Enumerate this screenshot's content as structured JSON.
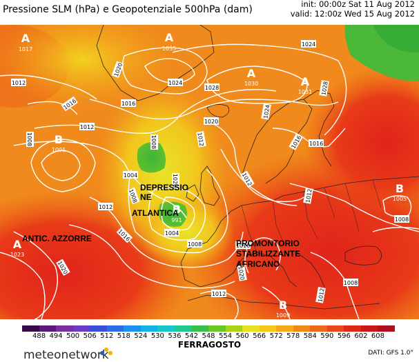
{
  "header": {
    "title": "Pressione SLM (hPa) e Geopotenziale 500hPa (dam)",
    "init": "init: 00:00z Sat 11 Aug 2012",
    "valid": "valid: 12:00z Wed 15 Aug 2012"
  },
  "map": {
    "labels": {
      "depressione_1": "DEPRESSIO",
      "depressione_2": "NE",
      "depressione_3": "ATLANTICA",
      "anticiclone": "ANTIC. AZZORRE",
      "promontorio_1": "PROMONTORIO",
      "promontorio_2": "STABILIZZANTE",
      "promontorio_3": "AFRICANO"
    },
    "centers": [
      {
        "letter": "A",
        "value": "1017"
      },
      {
        "letter": "A",
        "value": "1035"
      },
      {
        "letter": "A",
        "value": "1030"
      },
      {
        "letter": "A",
        "value": "1031"
      },
      {
        "letter": "B",
        "value": "1001"
      },
      {
        "letter": "B",
        "value": "991"
      },
      {
        "letter": "B",
        "value": "1005"
      },
      {
        "letter": "A",
        "value": "1023"
      },
      {
        "letter": "B",
        "value": "1009"
      }
    ],
    "isobars": [
      "1012",
      "1016",
      "1020",
      "1024",
      "1028",
      "1012",
      "1016",
      "1008",
      "1012",
      "1024",
      "1024",
      "1028",
      "1020",
      "1016",
      "1012",
      "1008",
      "1004",
      "1004",
      "1008",
      "1012",
      "1016",
      "1020",
      "1016",
      "1008",
      "1012",
      "1016",
      "1020",
      "1012",
      "1008",
      "1008",
      "1012",
      "1020",
      "1024",
      "1012",
      "1008",
      "1012",
      "1016"
    ]
  },
  "legend": {
    "ticks": [
      "488",
      "494",
      "500",
      "506",
      "512",
      "518",
      "524",
      "530",
      "536",
      "542",
      "548",
      "554",
      "560",
      "566",
      "572",
      "578",
      "584",
      "590",
      "596",
      "602",
      "608"
    ],
    "colors": [
      "#3b0a4a",
      "#5b1a7a",
      "#7a2fa2",
      "#6a3cc8",
      "#3a4fd8",
      "#2a6fe8",
      "#1e90f0",
      "#18b0e8",
      "#18c8c8",
      "#20c890",
      "#39c04a",
      "#68c828",
      "#a8d418",
      "#e8e020",
      "#f8c818",
      "#f8a818",
      "#f08818",
      "#ec6818",
      "#e84818",
      "#e02818",
      "#c81818",
      "#b01020"
    ],
    "subtitle": "FERRAGOSTO",
    "data_credit": "DATI: GFS 1.0°",
    "logo": "meteonetwork"
  }
}
